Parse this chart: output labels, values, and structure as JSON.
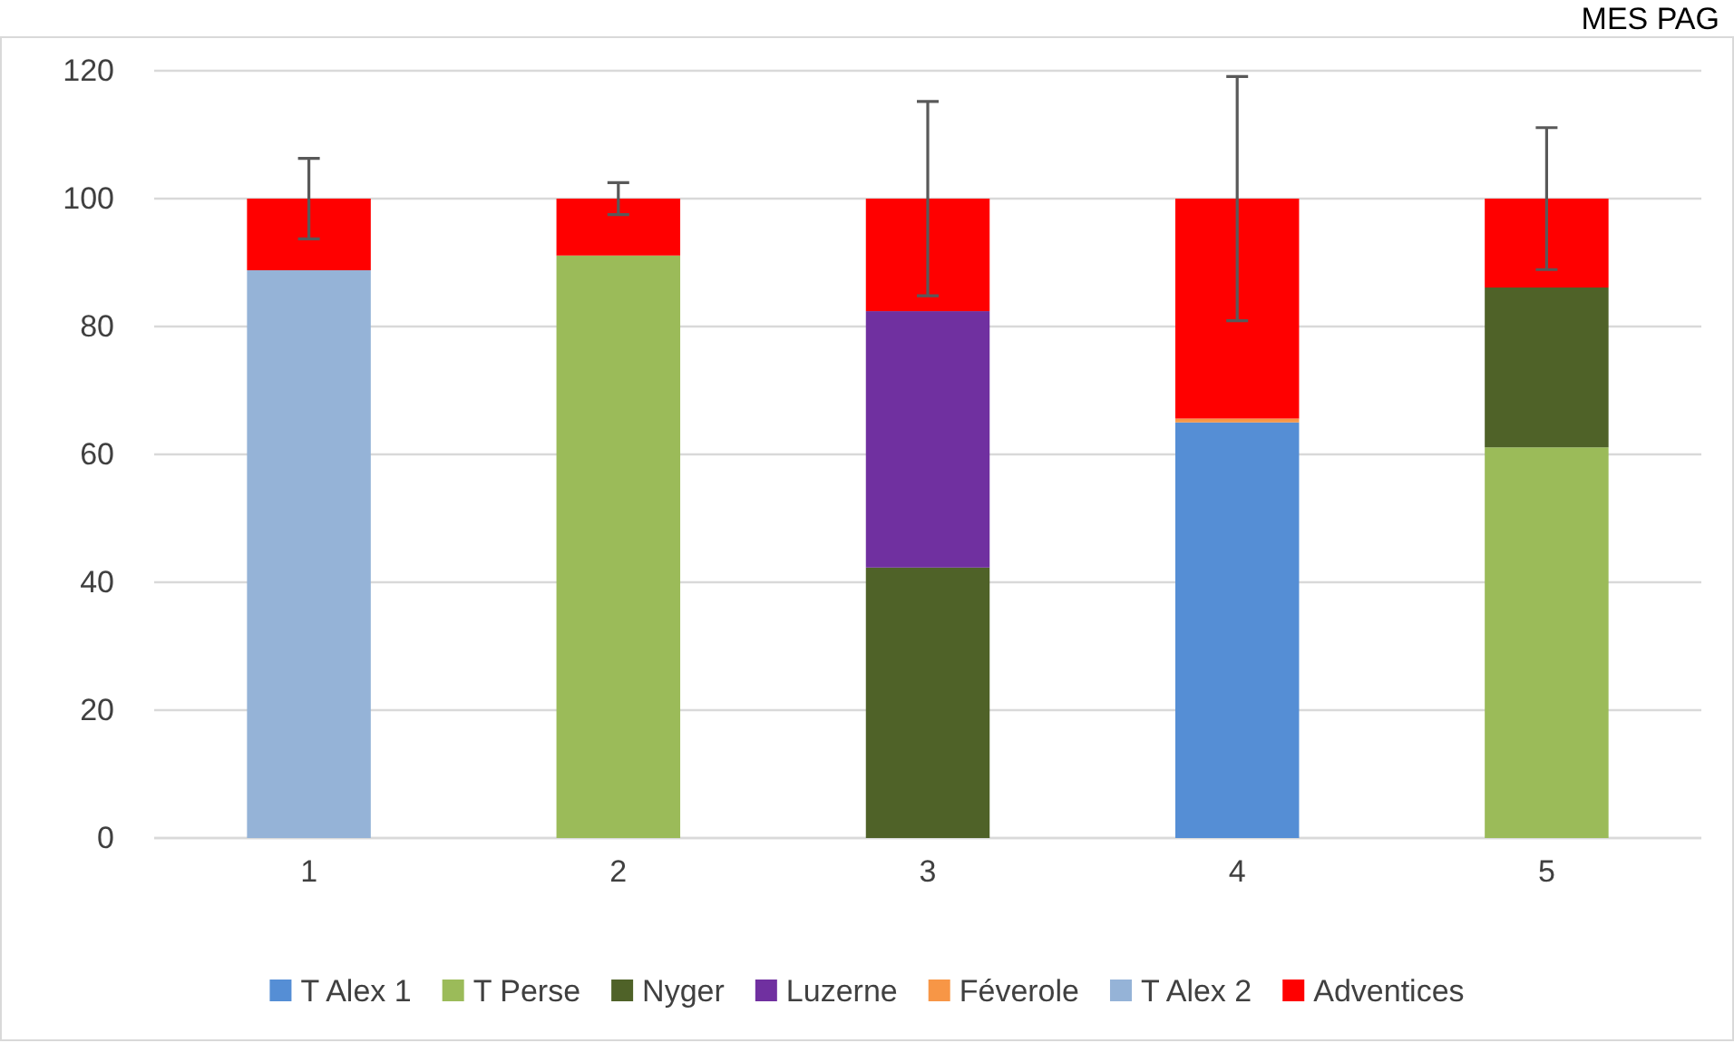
{
  "chart_data": {
    "type": "bar",
    "stacked": true,
    "categories": [
      "1",
      "2",
      "3",
      "4",
      "5"
    ],
    "series": [
      {
        "name": "T Alex 1",
        "color": "#558ed5",
        "values": [
          0,
          0,
          0,
          65.0,
          0
        ]
      },
      {
        "name": "T Perse",
        "color": "#9bbb59",
        "values": [
          0,
          91.1,
          0,
          0,
          61.1
        ]
      },
      {
        "name": "Nyger",
        "color": "#4f6228",
        "values": [
          0,
          0,
          42.3,
          0,
          25.0
        ]
      },
      {
        "name": "Luzerne",
        "color": "#7030a0",
        "values": [
          0,
          0,
          40.1,
          0,
          0
        ]
      },
      {
        "name": "Féverole",
        "color": "#f79646",
        "values": [
          0,
          0,
          0,
          0.6,
          0
        ]
      },
      {
        "name": "T Alex 2",
        "color": "#95b3d7",
        "values": [
          88.8,
          0,
          0,
          0,
          0
        ]
      },
      {
        "name": "Adventices",
        "color": "#ff0000",
        "values": [
          11.2,
          8.9,
          17.6,
          34.4,
          13.9
        ],
        "errors": [
          6.3,
          2.5,
          15.2,
          19.1,
          11.1
        ]
      }
    ],
    "ylim": [
      0,
      120
    ],
    "yticks": [
      0,
      20,
      40,
      60,
      80,
      100,
      120
    ],
    "grid": "y",
    "legend": "bottom",
    "annotations": [
      "MES PAG"
    ]
  }
}
